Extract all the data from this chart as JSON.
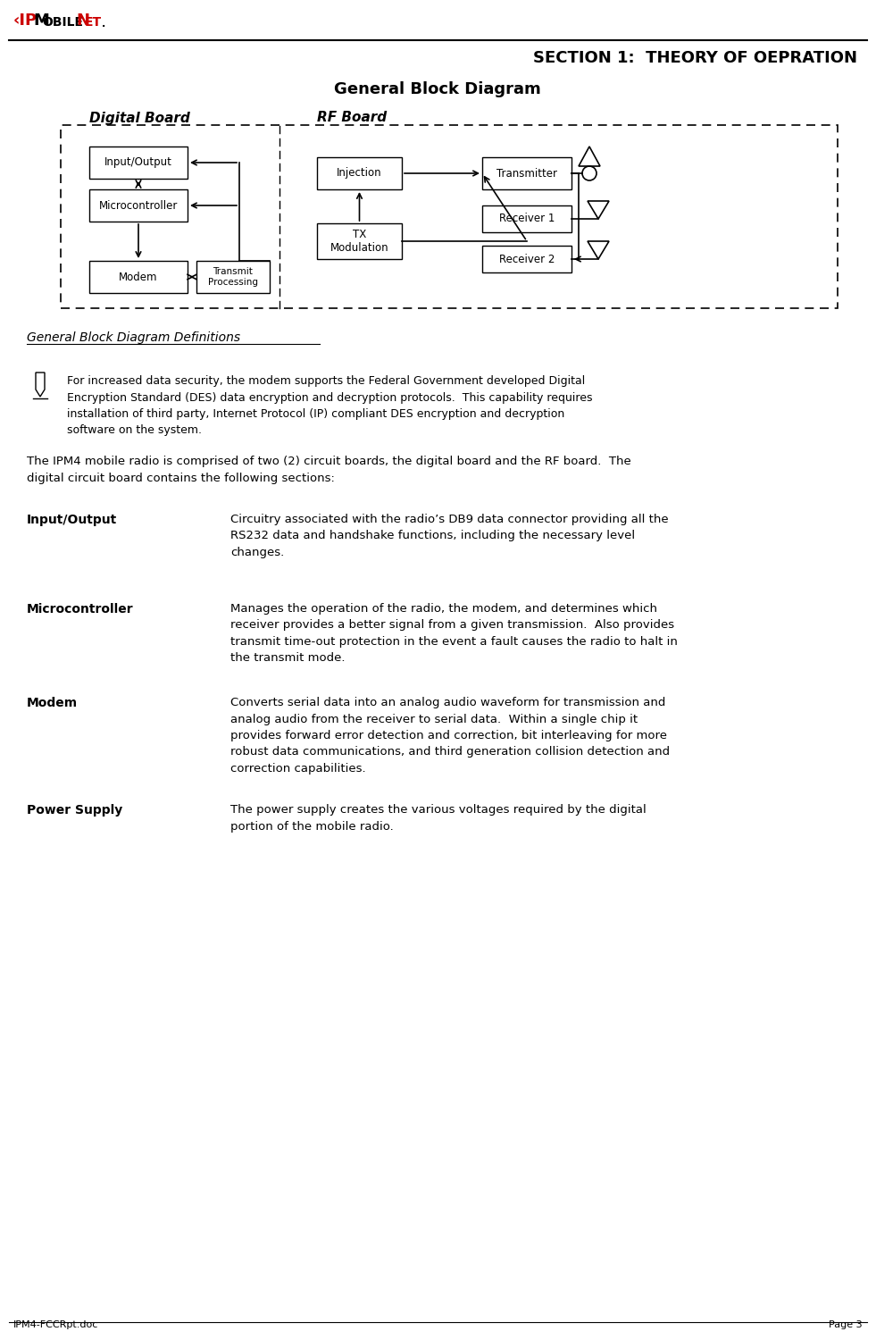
{
  "page_title": "SECTION 1:  THEORY OF OEPRATION",
  "diagram_title": "General Block Diagram",
  "digital_board_label": "Digital Board",
  "rf_board_label": "RF Board",
  "section_heading": "General Block Diagram Definitions",
  "note_text": "For increased data security, the modem supports the Federal Government developed Digital\nEncryption Standard (DES) data encryption and decryption protocols.  This capability requires\ninstallation of third party, Internet Protocol (IP) compliant DES encryption and decryption\nsoftware on the system.",
  "intro_text": "The IPM4 mobile radio is comprised of two (2) circuit boards, the digital board and the RF board.  The\ndigital circuit board contains the following sections:",
  "definitions": [
    {
      "term": "Input/Output",
      "description": "Circuitry associated with the radio’s DB9 data connector providing all the\nRS232 data and handshake functions, including the necessary level\nchanges."
    },
    {
      "term": "Microcontroller",
      "description": "Manages the operation of the radio, the modem, and determines which\nreceiver provides a better signal from a given transmission.  Also provides\ntransmit time-out protection in the event a fault causes the radio to halt in\nthe transmit mode."
    },
    {
      "term": "Modem",
      "description": "Converts serial data into an analog audio waveform for transmission and\nanalog audio from the receiver to serial data.  Within a single chip it\nprovides forward error detection and correction, bit interleaving for more\nrobust data communications, and third generation collision detection and\ncorrection capabilities."
    },
    {
      "term": "Power Supply",
      "description": "The power supply creates the various voltages required by the digital\nportion of the mobile radio."
    }
  ],
  "footer_left": "IPM4-FCCRpt.doc",
  "footer_right": "Page 3",
  "bg_color": "#ffffff",
  "text_color": "#000000",
  "logo_ip_color": "#cc0000",
  "logo_mobile_color": "#000000",
  "logo_net_color": "#cc0000"
}
